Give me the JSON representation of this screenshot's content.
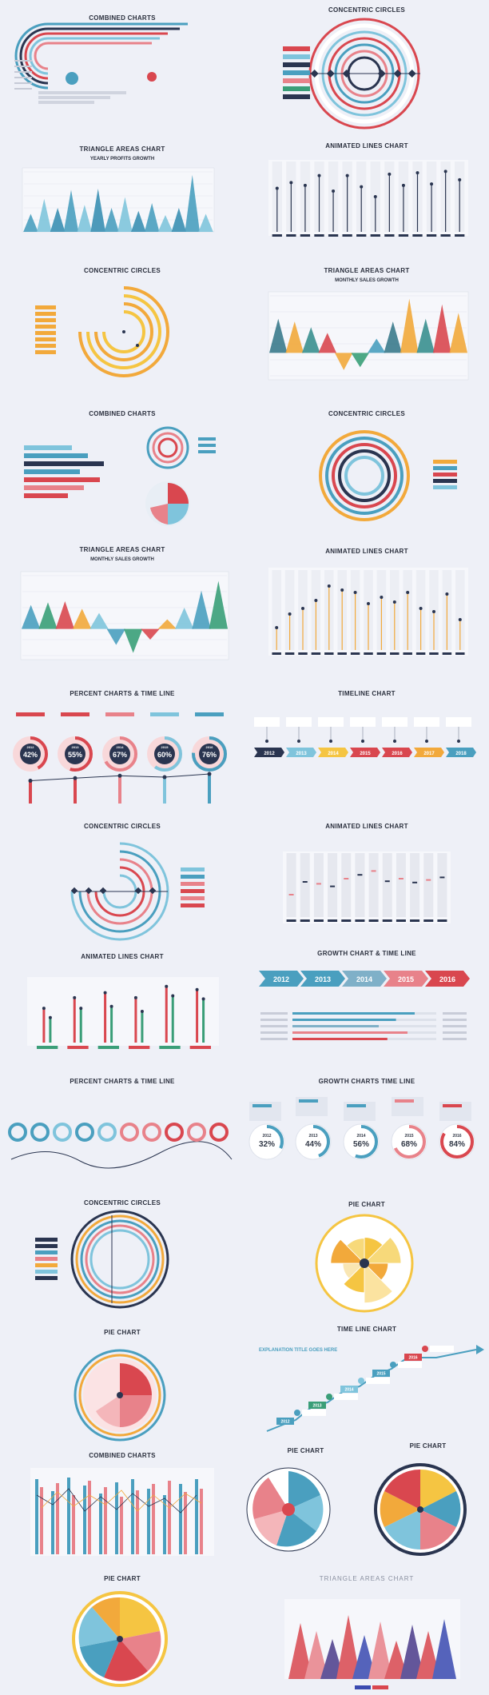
{
  "panels": {
    "p1": {
      "title": "COMBINED CHARTS"
    },
    "p2": {
      "title": "CONCENTRIC CIRCLES"
    },
    "p3": {
      "title": "TRIANGLE AREAS CHART",
      "subtitle": "YEARLY PROFITS GROWTH"
    },
    "p4": {
      "title": "ANIMATED LINES CHART"
    },
    "p5": {
      "title": "CONCENTRIC CIRCLES"
    },
    "p6": {
      "title": "TRIANGLE AREAS CHART",
      "subtitle": "MONTHLY SALES GROWTH"
    },
    "p7": {
      "title": "COMBINED CHARTS"
    },
    "p8": {
      "title": "CONCENTRIC CIRCLES"
    },
    "p9": {
      "title": "TRIANGLE AREAS CHART",
      "subtitle": "MONTHLY SALES GROWTH"
    },
    "p10": {
      "title": "ANIMATED LINES CHART"
    },
    "p11": {
      "title": "PERCENT CHARTS & TIME LINE"
    },
    "p12": {
      "title": "TIMELINE CHART"
    },
    "p13": {
      "title": "CONCENTRIC CIRCLES"
    },
    "p14": {
      "title": "ANIMATED LINES CHART"
    },
    "p15": {
      "title": "ANIMATED LINES CHART"
    },
    "p16": {
      "title": "GROWTH CHART & TIME LINE"
    },
    "p17": {
      "title": "PERCENT CHARTS & TIME LINE"
    },
    "p18": {
      "title": "GROWTH CHARTS TIME LINE"
    },
    "p19": {
      "title": "CONCENTRIC CIRCLES"
    },
    "p20": {
      "title": "PIE CHART"
    },
    "p21": {
      "title": "PIE CHART"
    },
    "p22": {
      "title": "TIME LINE CHART",
      "explanation": "EXPLANATION TITLE GOES HERE"
    },
    "p23": {
      "title": "COMBINED CHARTS"
    },
    "p24": {
      "title": "PIE CHART"
    },
    "p25": {
      "title": "PIE CHART"
    },
    "p26": {
      "title": "PIE CHART"
    },
    "p27": {
      "title": "TRIANGLE AREAS CHART"
    }
  },
  "colors": {
    "teal": "#4a9fbf",
    "red": "#d9474f",
    "navy": "#2a3550",
    "orange": "#f2a93b",
    "green": "#3a9e78",
    "yellow": "#f5c542",
    "pink": "#e8828a",
    "lightblue": "#7fc4dc"
  },
  "chart_data": [
    {
      "id": "yearly-profits",
      "type": "area",
      "subtype": "triangle",
      "title": "TRIANGLE AREAS CHART",
      "subtitle": "YEARLY PROFITS GROWTH",
      "values": [
        30,
        55,
        40,
        70,
        45,
        72,
        40,
        58,
        35,
        48,
        28,
        40,
        95,
        30
      ],
      "ylim": [
        0,
        100
      ]
    },
    {
      "id": "monthly-sales-1",
      "type": "area",
      "subtype": "triangle",
      "title": "TRIANGLE AREAS CHART",
      "subtitle": "MONTHLY SALES GROWTH",
      "values": [
        60,
        55,
        45,
        35,
        -30,
        -25,
        25,
        55,
        95,
        60,
        85,
        70
      ],
      "ylim": [
        -40,
        100
      ]
    },
    {
      "id": "monthly-sales-2",
      "type": "area",
      "subtype": "triangle",
      "title": "TRIANGLE AREAS CHART",
      "subtitle": "MONTHLY SALES GROWTH",
      "values": [
        45,
        50,
        52,
        38,
        30,
        -30,
        -45,
        -20,
        18,
        40,
        72,
        90
      ],
      "ylim": [
        -50,
        100
      ]
    },
    {
      "id": "animated-lines-1",
      "type": "bar",
      "title": "ANIMATED LINES CHART",
      "values": [
        62,
        70,
        66,
        80,
        58,
        80,
        64,
        50,
        82,
        66,
        84,
        68,
        86,
        74
      ],
      "ylim": [
        0,
        100
      ]
    },
    {
      "id": "animated-lines-2",
      "type": "bar",
      "title": "ANIMATED LINES CHART",
      "values": [
        28,
        45,
        52,
        62,
        80,
        75,
        72,
        58,
        66,
        60,
        72,
        52,
        48,
        70,
        38
      ],
      "ylim": [
        0,
        100
      ]
    },
    {
      "id": "animated-lines-3",
      "type": "bar",
      "title": "ANIMATED LINES CHART",
      "values": [
        35,
        55,
        52,
        48,
        60,
        66,
        72,
        56,
        60,
        54,
        58,
        62
      ],
      "ylim": [
        0,
        100
      ]
    },
    {
      "id": "animated-lines-4",
      "type": "bar",
      "title": "ANIMATED LINES CHART",
      "series": [
        {
          "values": [
            55,
            72,
            80,
            72,
            90,
            85
          ]
        },
        {
          "values": [
            40,
            55,
            58,
            50,
            75,
            70
          ]
        }
      ],
      "ylim": [
        0,
        100
      ]
    },
    {
      "id": "percent-timeline",
      "type": "bar",
      "title": "PERCENT CHARTS & TIME LINE",
      "categories": [
        "2012",
        "2013",
        "2014",
        "2015",
        "2016"
      ],
      "values": [
        42,
        55,
        67,
        60,
        76
      ],
      "labels": [
        "42%",
        "55%",
        "67%",
        "60%",
        "76%"
      ]
    },
    {
      "id": "timeline",
      "type": "table",
      "title": "TIMELINE CHART",
      "categories": [
        "2012",
        "2013",
        "2014",
        "2015",
        "2016",
        "2017",
        "2018"
      ]
    },
    {
      "id": "growth-timeline",
      "type": "bar",
      "title": "GROWTH CHART & TIME LINE",
      "categories": [
        "2012",
        "2013",
        "2014",
        "2015",
        "2016"
      ],
      "values": [
        85,
        72,
        60,
        80,
        66
      ]
    },
    {
      "id": "growth-charts-timeline",
      "type": "bar",
      "title": "GROWTH CHARTS TIME LINE",
      "categories": [
        "2012",
        "2013",
        "2014",
        "2015",
        "2016"
      ],
      "values": [
        32,
        44,
        56,
        68,
        84
      ],
      "labels": [
        "32%",
        "44%",
        "56%",
        "68%",
        "84%"
      ]
    },
    {
      "id": "timeline-steps",
      "type": "line",
      "title": "TIME LINE CHART",
      "categories": [
        "2012",
        "2013",
        "2014",
        "2015",
        "2016"
      ]
    },
    {
      "id": "pie-1",
      "type": "pie",
      "title": "PIE CHART",
      "values": [
        60,
        85,
        55,
        92,
        68,
        50,
        78,
        58
      ]
    }
  ]
}
